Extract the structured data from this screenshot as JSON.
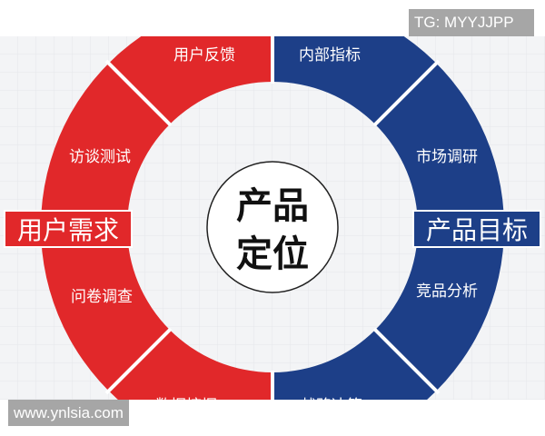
{
  "center": {
    "line1": "产品",
    "line2": "定位"
  },
  "left": {
    "title": "用户需求",
    "items": [
      "用户反馈",
      "访谈测试",
      "问卷调查",
      "数据挖掘"
    ],
    "color": "#e1282a"
  },
  "right": {
    "title": "产品目标",
    "items": [
      "内部指标",
      "市场调研",
      "竞品分析",
      "战略决策"
    ],
    "color": "#1d3f88"
  },
  "watermarks": {
    "top": "TG: MYYJJPP",
    "bottom": "www.ynlsia.com"
  }
}
